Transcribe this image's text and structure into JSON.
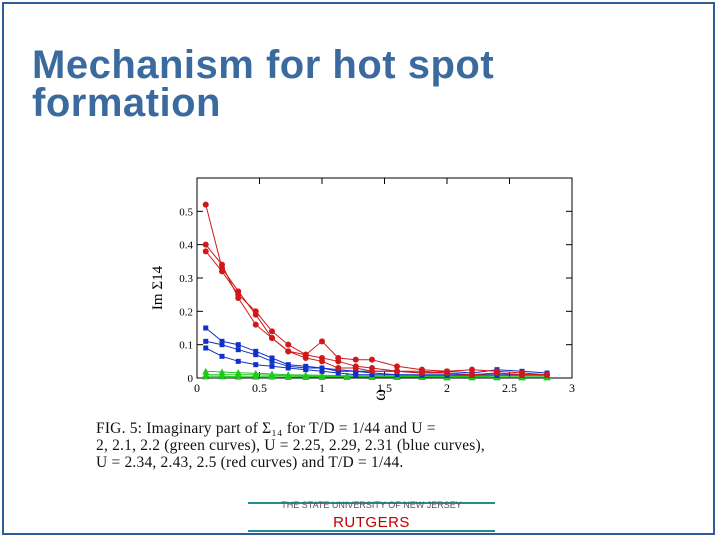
{
  "slide": {
    "title_line1": "Mechanism for hot spot",
    "title_line2": "formation"
  },
  "figure": {
    "caption_line1": "FIG. 5: Imaginary part of Σ₁₄ for T/D = 1/44 and U =",
    "caption_line2": "2, 2.1, 2.2 (green curves), U = 2.25, 2.29, 2.31 (blue curves),",
    "caption_line3": "U = 2.34, 2.43, 2.5 (red curves) and T/D = 1/44."
  },
  "footer": {
    "university": "THE STATE UNIVERSITY OF NEW JERSEY",
    "brand": "RUTGERS"
  },
  "chart_data": {
    "type": "line",
    "title": "",
    "xlabel": "ω",
    "ylabel": "Im Σ14",
    "xlim": [
      0,
      3
    ],
    "ylim": [
      0,
      0.6
    ],
    "x_ticks": [
      0,
      0.5,
      1,
      1.5,
      2,
      2.5,
      3
    ],
    "x_tick_labels": [
      "0",
      "0.5",
      "1",
      "1.5",
      "2",
      "2.5",
      "3"
    ],
    "y_ticks": [
      0,
      0.1,
      0.2,
      0.3,
      0.4,
      0.5
    ],
    "y_tick_labels": [
      "0",
      "0.1",
      "0.2",
      "0.3",
      "0.4",
      "0.5"
    ],
    "grid": false,
    "colors": {
      "green": "#1ec81e",
      "blue": "#1030c8",
      "red": "#d01818"
    },
    "series": [
      {
        "color": "green",
        "x": [
          0.07,
          0.2,
          0.33,
          0.47,
          0.6,
          0.73,
          0.87,
          1.0,
          1.2,
          1.4,
          1.6,
          1.8,
          2.0,
          2.2,
          2.4,
          2.6,
          2.8
        ],
        "values": [
          0.01,
          0.01,
          0.01,
          0.01,
          0.008,
          0.007,
          0.006,
          0.005,
          0.005,
          0.005,
          0.004,
          0.004,
          0.004,
          0.003,
          0.003,
          0.003,
          0.003
        ]
      },
      {
        "color": "green",
        "x": [
          0.07,
          0.2,
          0.33,
          0.47,
          0.6,
          0.73,
          0.87,
          1.0,
          1.2,
          1.4,
          1.6,
          1.8,
          2.0,
          2.2,
          2.4,
          2.6,
          2.8
        ],
        "values": [
          0.02,
          0.018,
          0.016,
          0.014,
          0.012,
          0.01,
          0.009,
          0.008,
          0.007,
          0.006,
          0.006,
          0.005,
          0.005,
          0.005,
          0.004,
          0.004,
          0.004
        ]
      },
      {
        "color": "green",
        "x": [
          0.07,
          0.2,
          0.33,
          0.47,
          0.6,
          0.73,
          0.87,
          1.0,
          1.2,
          1.4,
          1.6,
          1.8,
          2.0,
          2.2,
          2.4,
          2.6,
          2.8
        ],
        "values": [
          0.005,
          0.005,
          0.004,
          0.004,
          0.004,
          0.003,
          0.003,
          0.003,
          0.003,
          0.003,
          0.003,
          0.003,
          0.002,
          0.002,
          0.002,
          0.002,
          0.002
        ]
      },
      {
        "color": "blue",
        "x": [
          0.07,
          0.2,
          0.33,
          0.47,
          0.6,
          0.73,
          0.87,
          1.0,
          1.13,
          1.27,
          1.4,
          1.6,
          1.8,
          2.0,
          2.2,
          2.4,
          2.6,
          2.8
        ],
        "values": [
          0.15,
          0.11,
          0.1,
          0.08,
          0.06,
          0.04,
          0.035,
          0.03,
          0.02,
          0.02,
          0.015,
          0.01,
          0.01,
          0.01,
          0.01,
          0.01,
          0.01,
          0.01
        ]
      },
      {
        "color": "blue",
        "x": [
          0.07,
          0.2,
          0.33,
          0.47,
          0.6,
          0.73,
          0.87,
          1.0,
          1.13,
          1.27,
          1.4,
          1.6,
          1.8,
          2.0,
          2.2,
          2.4,
          2.6,
          2.8
        ],
        "values": [
          0.11,
          0.1,
          0.085,
          0.07,
          0.05,
          0.035,
          0.03,
          0.03,
          0.025,
          0.02,
          0.02,
          0.02,
          0.015,
          0.02,
          0.015,
          0.025,
          0.02,
          0.015
        ]
      },
      {
        "color": "blue",
        "x": [
          0.07,
          0.2,
          0.33,
          0.47,
          0.6,
          0.73,
          0.87,
          1.0,
          1.13,
          1.27,
          1.4,
          1.6,
          1.8,
          2.0,
          2.2,
          2.4,
          2.6,
          2.8
        ],
        "values": [
          0.09,
          0.065,
          0.05,
          0.04,
          0.035,
          0.03,
          0.025,
          0.02,
          0.015,
          0.01,
          0.01,
          0.01,
          0.008,
          0.008,
          0.008,
          0.008,
          0.008,
          0.008
        ]
      },
      {
        "color": "red",
        "x": [
          0.07,
          0.2,
          0.33,
          0.47,
          0.6,
          0.73,
          0.87,
          1.0,
          1.13,
          1.27,
          1.4,
          1.6,
          1.8,
          2.0,
          2.2,
          2.4,
          2.6,
          2.8
        ],
        "values": [
          0.52,
          0.33,
          0.26,
          0.19,
          0.12,
          0.08,
          0.06,
          0.05,
          0.03,
          0.03,
          0.02,
          0.02,
          0.015,
          0.015,
          0.01,
          0.015,
          0.01,
          0.01
        ]
      },
      {
        "color": "red",
        "x": [
          0.07,
          0.2,
          0.33,
          0.47,
          0.6,
          0.73,
          0.87,
          1.0,
          1.13,
          1.27,
          1.4,
          1.6,
          1.8,
          2.0,
          2.2,
          2.4,
          2.6,
          2.8
        ],
        "values": [
          0.4,
          0.34,
          0.24,
          0.16,
          0.12,
          0.08,
          0.07,
          0.06,
          0.05,
          0.035,
          0.03,
          0.02,
          0.02,
          0.015,
          0.01,
          0.015,
          0.01,
          0.01
        ]
      },
      {
        "color": "red",
        "x": [
          0.07,
          0.2,
          0.33,
          0.47,
          0.6,
          0.73,
          0.87,
          1.0,
          1.13,
          1.27,
          1.4,
          1.6,
          1.8,
          2.0,
          2.2,
          2.4,
          2.6,
          2.8
        ],
        "values": [
          0.38,
          0.32,
          0.25,
          0.2,
          0.14,
          0.1,
          0.07,
          0.11,
          0.06,
          0.055,
          0.055,
          0.035,
          0.025,
          0.02,
          0.025,
          0.02,
          0.015,
          0.01
        ]
      }
    ]
  }
}
